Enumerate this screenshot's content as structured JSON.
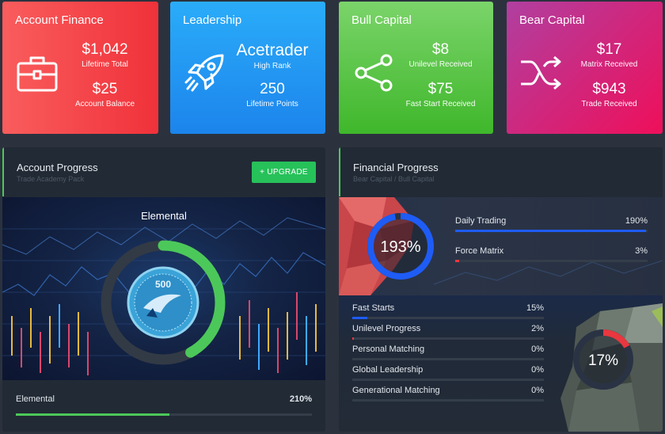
{
  "cards": [
    {
      "title": "Account Finance",
      "icon": "briefcase-icon",
      "stats": [
        {
          "value": "$1,042",
          "label": "Lifetime Total"
        },
        {
          "value": "$25",
          "label": "Account Balance"
        }
      ]
    },
    {
      "title": "Leadership",
      "icon": "rocket-icon",
      "stats": [
        {
          "value": "Acetrader",
          "label": "High Rank"
        },
        {
          "value": "250",
          "label": "Lifetime Points"
        }
      ]
    },
    {
      "title": "Bull Capital",
      "icon": "share-icon",
      "stats": [
        {
          "value": "$8",
          "label": "Unilevel Received"
        },
        {
          "value": "$75",
          "label": "Fast Start Received"
        }
      ]
    },
    {
      "title": "Bear Capital",
      "icon": "shuffle-icon",
      "stats": [
        {
          "value": "$17",
          "label": "Matrix Received"
        },
        {
          "value": "$943",
          "label": "Trade Received"
        }
      ]
    }
  ],
  "account_progress": {
    "title": "Account Progress",
    "subtitle": "Trade Academy Pack",
    "upgrade_label": "+ UPGRADE",
    "hero_title": "Elemental",
    "badge_number": "500",
    "ring_fraction": 0.42,
    "ring_color": "#4cc85a",
    "bar": {
      "label": "Elemental",
      "value": "210%",
      "fill_fraction": 0.52,
      "color": "#4cc85a"
    }
  },
  "financial_progress": {
    "title": "Financial Progress",
    "subtitle": "Bear Capital / Bull Capital",
    "top_ring": {
      "value": "193%",
      "fraction": 0.97,
      "color": "#1e5cf5"
    },
    "top_bars": [
      {
        "label": "Daily Trading",
        "value": "190%",
        "fill_fraction": 0.99,
        "color": "#1e5cf5"
      },
      {
        "label": "Force Matrix",
        "value": "3%",
        "fill_fraction": 0.02,
        "color": "#e8373f"
      }
    ],
    "bottom_ring": {
      "value": "17%",
      "fraction": 0.17,
      "color": "#e8373f"
    },
    "bottom_bars": [
      {
        "label": "Fast Starts",
        "value": "15%",
        "fill_fraction": 0.08,
        "color": "#1e5cf5"
      },
      {
        "label": "Unilevel Progress",
        "value": "2%",
        "fill_fraction": 0.01,
        "color": "#e8373f"
      },
      {
        "label": "Personal Matching",
        "value": "0%",
        "fill_fraction": 0,
        "color": "#e8373f"
      },
      {
        "label": "Global Leadership",
        "value": "0%",
        "fill_fraction": 0,
        "color": "#e8373f"
      },
      {
        "label": "Generational Matching",
        "value": "0%",
        "fill_fraction": 0,
        "color": "#e8373f"
      }
    ]
  }
}
